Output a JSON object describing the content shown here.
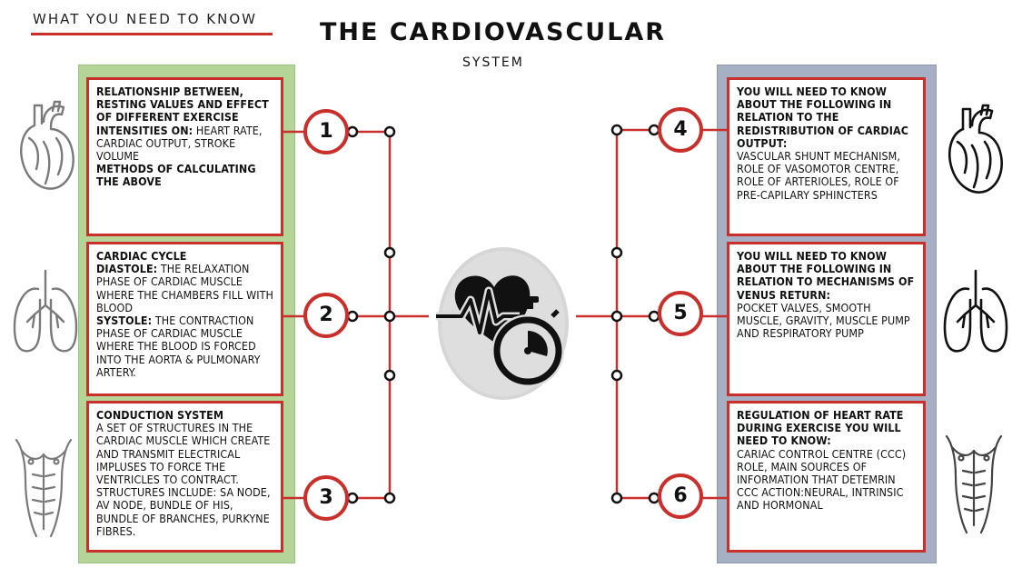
{
  "header": {
    "tagline": "WHAT YOU NEED TO KNOW",
    "title": "THE CARDIOVASCULAR",
    "subtitle": "SYSTEM"
  },
  "colors": {
    "accent": "#c9302c",
    "left_panel": "#b4d498",
    "right_panel": "#a6b0c4"
  },
  "icons": {
    "left": [
      "heart-icon",
      "lungs-icon",
      "torso-icon"
    ],
    "right": [
      "heart-icon",
      "lungs-icon",
      "torso-icon"
    ],
    "center": "heartbeat-stopwatch-icon"
  },
  "topics": [
    {
      "number": "1",
      "b1": "RELATIONSHIP BETWEEN, RESTING VALUES AND EFFECT OF DIFFERENT EXERCISE INTENSITIES ON:",
      "t1": " HEART RATE, CARDIAC OUTPUT, STROKE VOLUME",
      "b2": "METHODS OF CALCULATING THE ABOVE"
    },
    {
      "number": "2",
      "b1": "CARDIAC CYCLE",
      "b2": "DIASTOLE:",
      "t2": " THE RELAXATION PHASE OF CARDIAC MUSCLE WHERE THE CHAMBERS FILL WITH BLOOD",
      "b3": "SYSTOLE:",
      "t3": " THE CONTRACTION PHASE OF CARDIAC MUSCLE WHERE THE BLOOD IS FORCED INTO THE AORTA & PULMONARY ARTERY."
    },
    {
      "number": "3",
      "b1": "CONDUCTION SYSTEM",
      "t1": "A SET OF STRUCTURES IN THE CARDIAC MUSCLE WHICH CREATE AND TRANSMIT ELECTRICAL IMPLUSES TO FORCE THE VENTRICLES TO CONTRACT. STRUCTURES INCLUDE: SA NODE, AV NODE, BUNDLE OF HIS, BUNDLE OF BRANCHES, PURKYNE FIBRES."
    },
    {
      "number": "4",
      "b1": "YOU WILL NEED TO KNOW ABOUT THE FOLLOWING IN RELATION TO THE REDISTRIBUTION OF CARDIAC OUTPUT:",
      "t1": "VASCULAR SHUNT MECHANISM, ROLE OF VASOMOTOR CENTRE, ROLE OF ARTERIOLES, ROLE OF PRE-CAPILARY SPHINCTERS"
    },
    {
      "number": "5",
      "b1": "YOU WILL NEED TO KNOW ABOUT THE FOLLOWING IN RELATION TO MECHANISMS OF VENUS RETURN:",
      "t1": "POCKET VALVES, SMOOTH MUSCLE, GRAVITY, MUSCLE PUMP AND RESPIRATORY PUMP"
    },
    {
      "number": "6",
      "b1": "REGULATION OF HEART RATE DURING EXERCISE YOU WILL NEED TO KNOW:",
      "t1": "CARIAC CONTROL CENTRE (CCC) ROLE, MAIN SOURCES OF INFORMATION THAT DETEMRIN CCC ACTION:NEURAL, INTRINSIC AND HORMONAL"
    }
  ]
}
